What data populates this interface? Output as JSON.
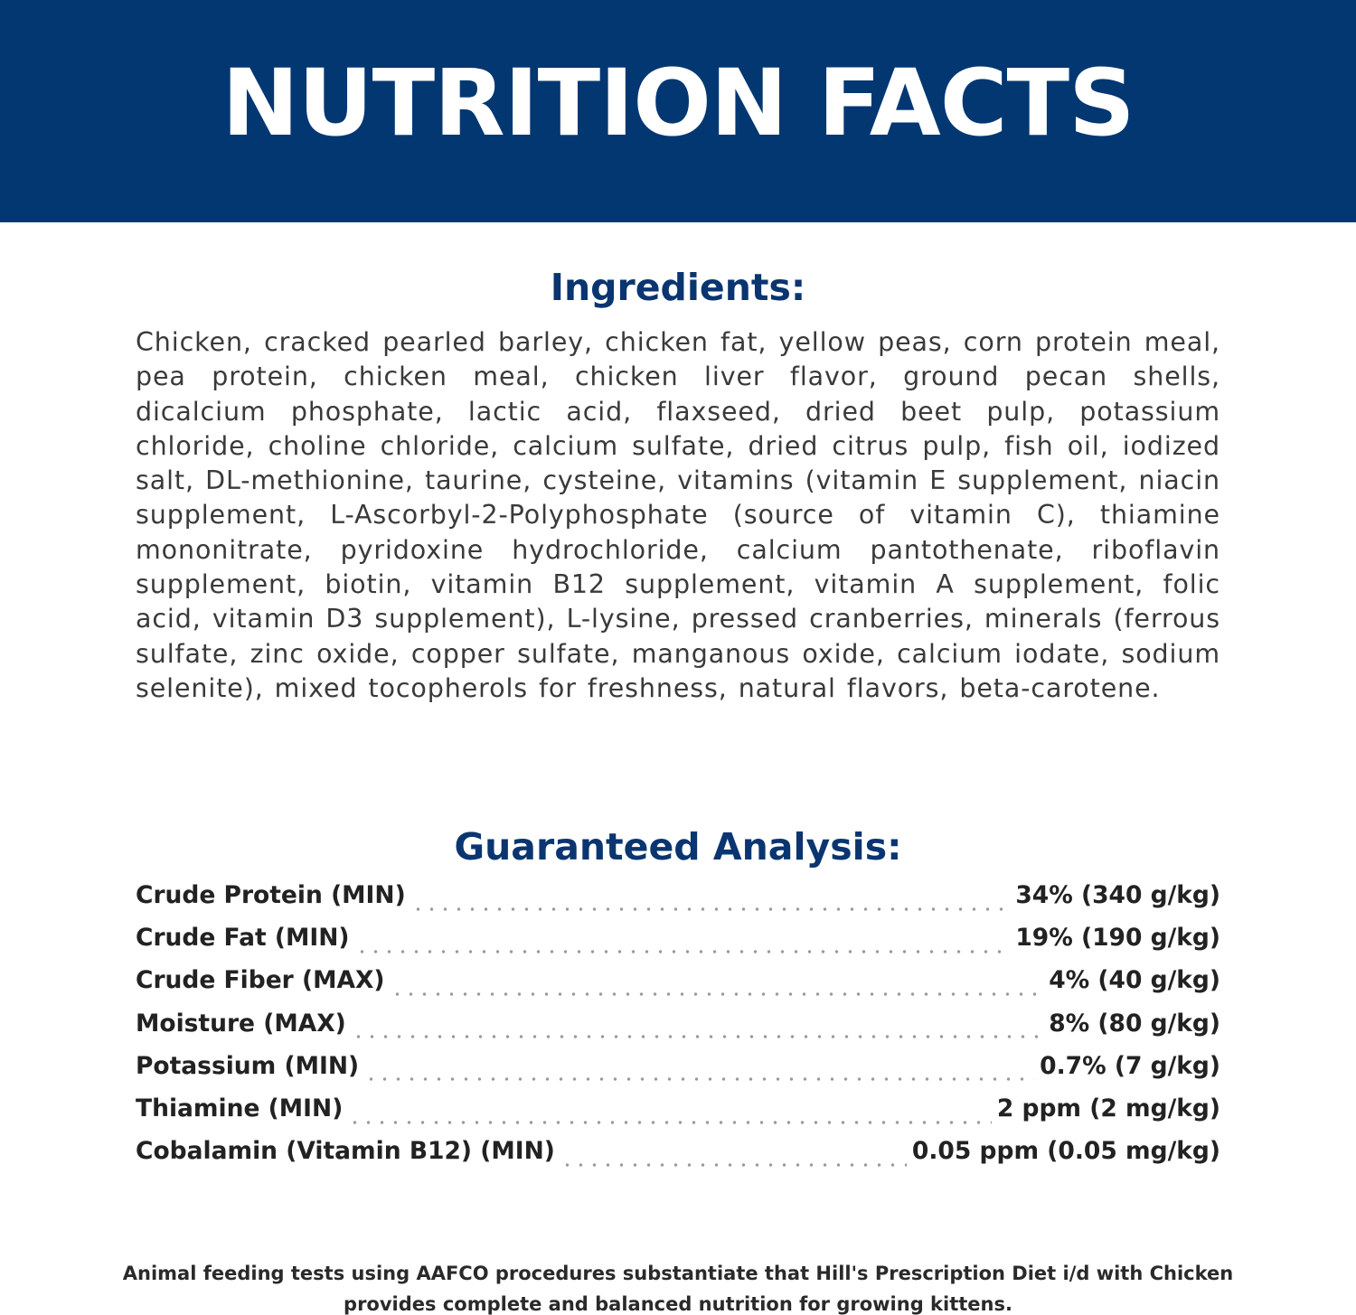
{
  "banner": {
    "title": "NUTRITION FACTS",
    "background_color": "#033772"
  },
  "ingredients": {
    "heading": "Ingredients:",
    "text": "Chicken, cracked pearled barley, chicken fat, yellow peas, corn protein meal, pea protein, chicken meal, chicken liver flavor, ground pecan shells, dicalcium phosphate, lactic acid, flaxseed, dried beet pulp, potassium chloride, choline chloride, calcium sulfate, dried citrus pulp, fish oil, iodized salt, DL-methionine, taurine, cysteine, vitamins (vitamin E supplement, niacin supplement, L-Ascorbyl-2-Polyphosphate (source of vitamin C), thiamine mononitrate, pyridoxine hydrochloride, calcium pantothenate, riboflavin supplement, biotin, vitamin B12 supplement, vitamin A supplement, folic acid, vitamin D3 supplement), L-lysine, pressed cranberries, minerals (ferrous sulfate, zinc oxide, copper sulfate, manganous oxide, calcium iodate, sodium selenite), mixed tocopherols for freshness, natural flavors, beta-carotene."
  },
  "guaranteed_analysis": {
    "heading": "Guaranteed Analysis:",
    "rows": [
      {
        "label": "Crude Protein (MIN)",
        "value": "34% (340 g/kg)"
      },
      {
        "label": "Crude Fat (MIN)",
        "value": "19% (190 g/kg)"
      },
      {
        "label": "Crude Fiber (MAX)",
        "value": "4% (40 g/kg)"
      },
      {
        "label": "Moisture (MAX)",
        "value": "8% (80 g/kg)"
      },
      {
        "label": "Potassium (MIN)",
        "value": "0.7% (7 g/kg)"
      },
      {
        "label": "Thiamine (MIN)",
        "value": "2 ppm (2 mg/kg)"
      },
      {
        "label": "Cobalamin (Vitamin B12) (MIN)",
        "value": "0.05 ppm (0.05 mg/kg)"
      }
    ]
  },
  "footnote": {
    "line1": "Animal feeding tests using AAFCO procedures substantiate that Hill's Prescription Diet i/d with Chicken",
    "line2": "provides complete and balanced nutrition for growing kittens."
  }
}
